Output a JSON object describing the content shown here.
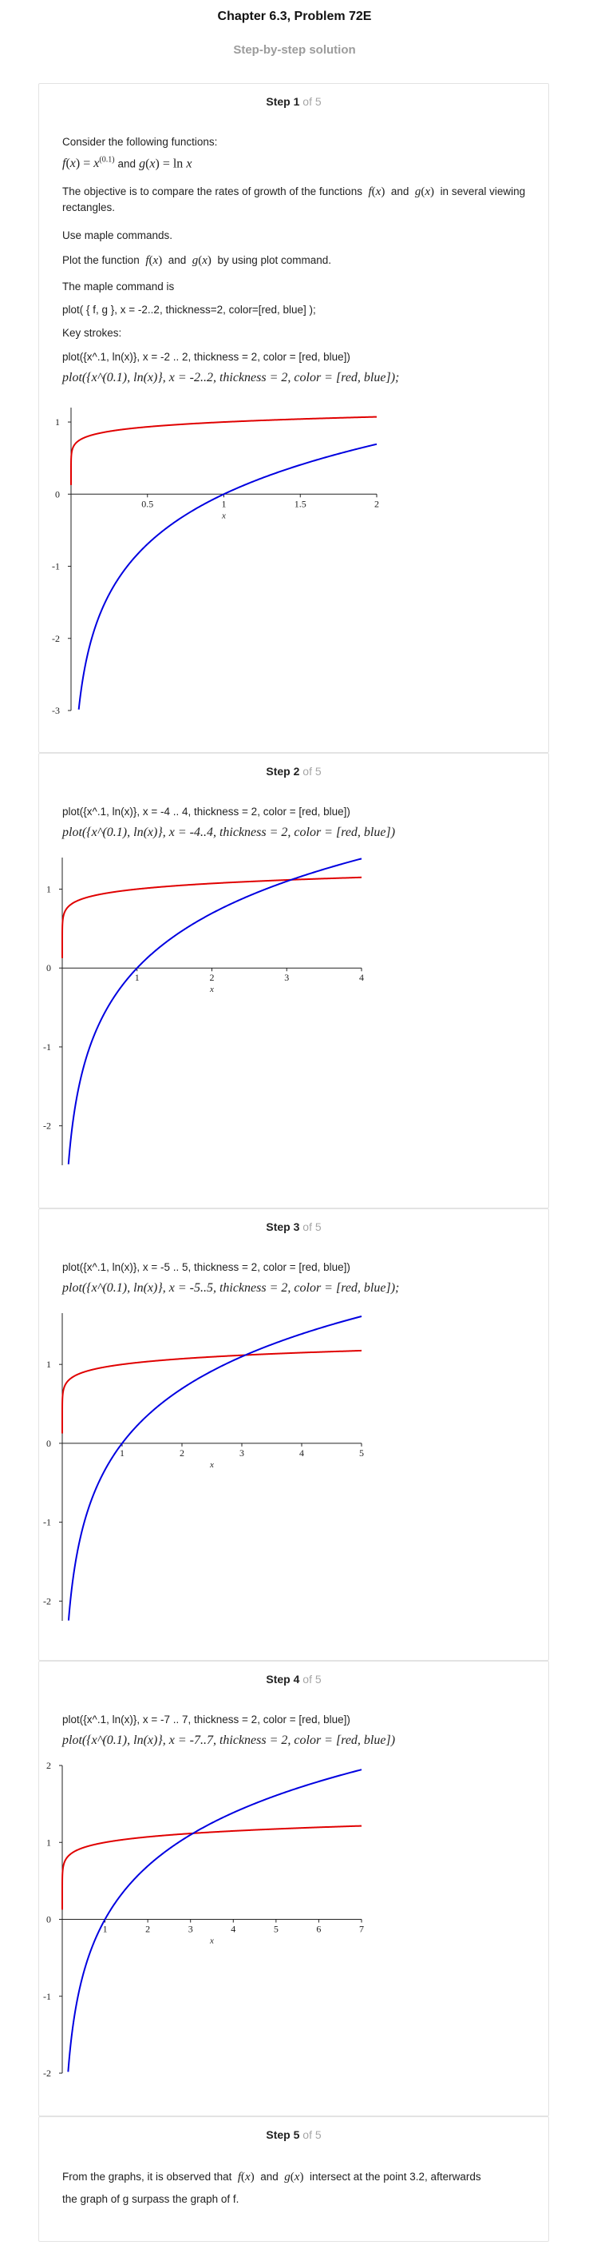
{
  "page": {
    "chapter_title": "Chapter 6.3, Problem 72E",
    "subtitle": "Step-by-step solution"
  },
  "steps": [
    {
      "step_word": "Step",
      "step_num": "1",
      "of_total": "of 5",
      "intro": "Consider the following functions:",
      "objective": "The objective is to compare the rates of growth of the functions",
      "objective_and": "and",
      "objective_tail": "in several viewing rectangles.",
      "use_maple": "Use maple commands.",
      "plot_prefix": "Plot the function",
      "plot_and": "and",
      "plot_suffix": "by using plot command.",
      "maple_cmd_label": "The maple command is",
      "maple_cmd": "plot( { f, g }, x = -2..2, thickness=2, color=[red, blue] );",
      "key_strokes": "Key strokes:",
      "keystroke_cmd": "plot({x^.1, ln(x)}, x = -2 .. 2, thickness = 2, color = [red, blue])",
      "pretty_cmd": "plot({x^(0.1), ln(x)}, x = -2..2, thickness = 2, color = [red, blue]);"
    },
    {
      "step_word": "Step",
      "step_num": "2",
      "of_total": "of 5",
      "keystroke_cmd": "plot({x^.1, ln(x)}, x = -4 .. 4, thickness = 2, color = [red, blue])",
      "pretty_cmd": "plot({x^(0.1), ln(x)}, x = -4..4, thickness = 2, color = [red, blue])"
    },
    {
      "step_word": "Step",
      "step_num": "3",
      "of_total": "of 5",
      "keystroke_cmd": "plot({x^.1, ln(x)}, x = -5 .. 5, thickness = 2, color = [red, blue])",
      "pretty_cmd": "plot({x^(0.1), ln(x)}, x = -5..5, thickness = 2, color = [red, blue]);"
    },
    {
      "step_word": "Step",
      "step_num": "4",
      "of_total": "of 5",
      "keystroke_cmd": "plot({x^.1, ln(x)}, x = -7 .. 7, thickness = 2, color = [red, blue])",
      "pretty_cmd": "plot({x^(0.1), ln(x)}, x = -7..7, thickness = 2, color = [red, blue])"
    },
    {
      "step_word": "Step",
      "step_num": "5",
      "of_total": "of 5",
      "conclusion_prefix": "From the graphs, it is observed that",
      "conclusion_and": "and",
      "conclusion_mid": "intersect at the point 3.2, afterwards",
      "conclusion_line2": "the graph of g surpass the graph of f."
    }
  ],
  "math": {
    "f_def": "f(x) = x^(0.1)",
    "f_lhs": "f",
    "x": "x",
    "exp": "(0.1)",
    "g_lhs": "g",
    "ln": "ln",
    "and": "and",
    "f_of_x": "f(x)",
    "g_of_x": "g(x)"
  },
  "chart_data": [
    {
      "type": "line",
      "x_range": [
        0,
        2
      ],
      "ylim": [
        -3,
        1.2
      ],
      "xticks": [
        "0.5",
        "1",
        "1.5",
        "2"
      ],
      "yticks": [
        "1",
        "0",
        "-1",
        "-2",
        "-3"
      ],
      "xlabel": "x",
      "series": [
        {
          "function": "x^0.1",
          "color": "#e00000"
        },
        {
          "function": "ln(x)",
          "color": "#0000e0"
        }
      ]
    },
    {
      "type": "line",
      "x_range": [
        0,
        4
      ],
      "ylim": [
        -2.5,
        1.4
      ],
      "xticks": [
        "1",
        "2",
        "3",
        "4"
      ],
      "yticks": [
        "1",
        "0",
        "-1",
        "-2"
      ],
      "xlabel": "x",
      "series": [
        {
          "function": "x^0.1",
          "color": "#e00000"
        },
        {
          "function": "ln(x)",
          "color": "#0000e0"
        }
      ]
    },
    {
      "type": "line",
      "x_range": [
        0,
        5
      ],
      "ylim": [
        -2.25,
        1.65
      ],
      "xticks": [
        "1",
        "2",
        "3",
        "4",
        "5"
      ],
      "yticks": [
        "1",
        "0",
        "-1",
        "-2"
      ],
      "xlabel": "x",
      "series": [
        {
          "function": "x^0.1",
          "color": "#e00000"
        },
        {
          "function": "ln(x)",
          "color": "#0000e0"
        }
      ]
    },
    {
      "type": "line",
      "x_range": [
        0,
        7
      ],
      "ylim": [
        -2,
        2
      ],
      "xticks": [
        "1",
        "2",
        "3",
        "4",
        "5",
        "6",
        "7"
      ],
      "yticks": [
        "2",
        "1",
        "0",
        "-1",
        "-2"
      ],
      "xlabel": "x",
      "series": [
        {
          "function": "x^0.1",
          "color": "#e00000"
        },
        {
          "function": "ln(x)",
          "color": "#0000e0"
        }
      ]
    }
  ]
}
